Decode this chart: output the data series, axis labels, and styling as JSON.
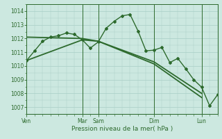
{
  "background_color": "#cce8e0",
  "grid_color": "#a8cec6",
  "line_color": "#2d6a2d",
  "title": "Pression niveau de la mer( hPa )",
  "ylim": [
    1006.5,
    1014.5
  ],
  "yticks": [
    1007,
    1008,
    1009,
    1010,
    1011,
    1012,
    1013,
    1014
  ],
  "xlim": [
    0,
    96
  ],
  "xtick_labels_major": [
    "Ven",
    "Mar",
    "Sam",
    "Dim",
    "Lun"
  ],
  "xtick_positions_major": [
    0,
    28,
    36,
    64,
    88
  ],
  "vline_positions": [
    0,
    28,
    36,
    64,
    88
  ],
  "series1_x": [
    0,
    4,
    8,
    12,
    16,
    20,
    24,
    28,
    32,
    36,
    40,
    44,
    48,
    52,
    56,
    60,
    64,
    68,
    72,
    76,
    80,
    84,
    88,
    92,
    96
  ],
  "series1_y": [
    1010.4,
    1011.1,
    1011.8,
    1012.1,
    1012.2,
    1012.4,
    1012.3,
    1011.9,
    1011.3,
    1011.75,
    1012.75,
    1013.25,
    1013.65,
    1013.75,
    1012.55,
    1011.1,
    1011.15,
    1011.35,
    1010.25,
    1010.55,
    1009.8,
    1009.0,
    1008.45,
    1007.1,
    1007.9
  ],
  "series2_x": [
    0,
    28,
    36,
    64,
    88
  ],
  "series2_y": [
    1012.1,
    1012.0,
    1011.8,
    1010.3,
    1008.0
  ],
  "series3_x": [
    0,
    28,
    36,
    64,
    88
  ],
  "series3_y": [
    1010.4,
    1011.9,
    1011.8,
    1010.15,
    1007.7
  ],
  "marker": "D",
  "markersize": 2.0,
  "linewidth1": 1.0,
  "linewidth2": 1.3
}
